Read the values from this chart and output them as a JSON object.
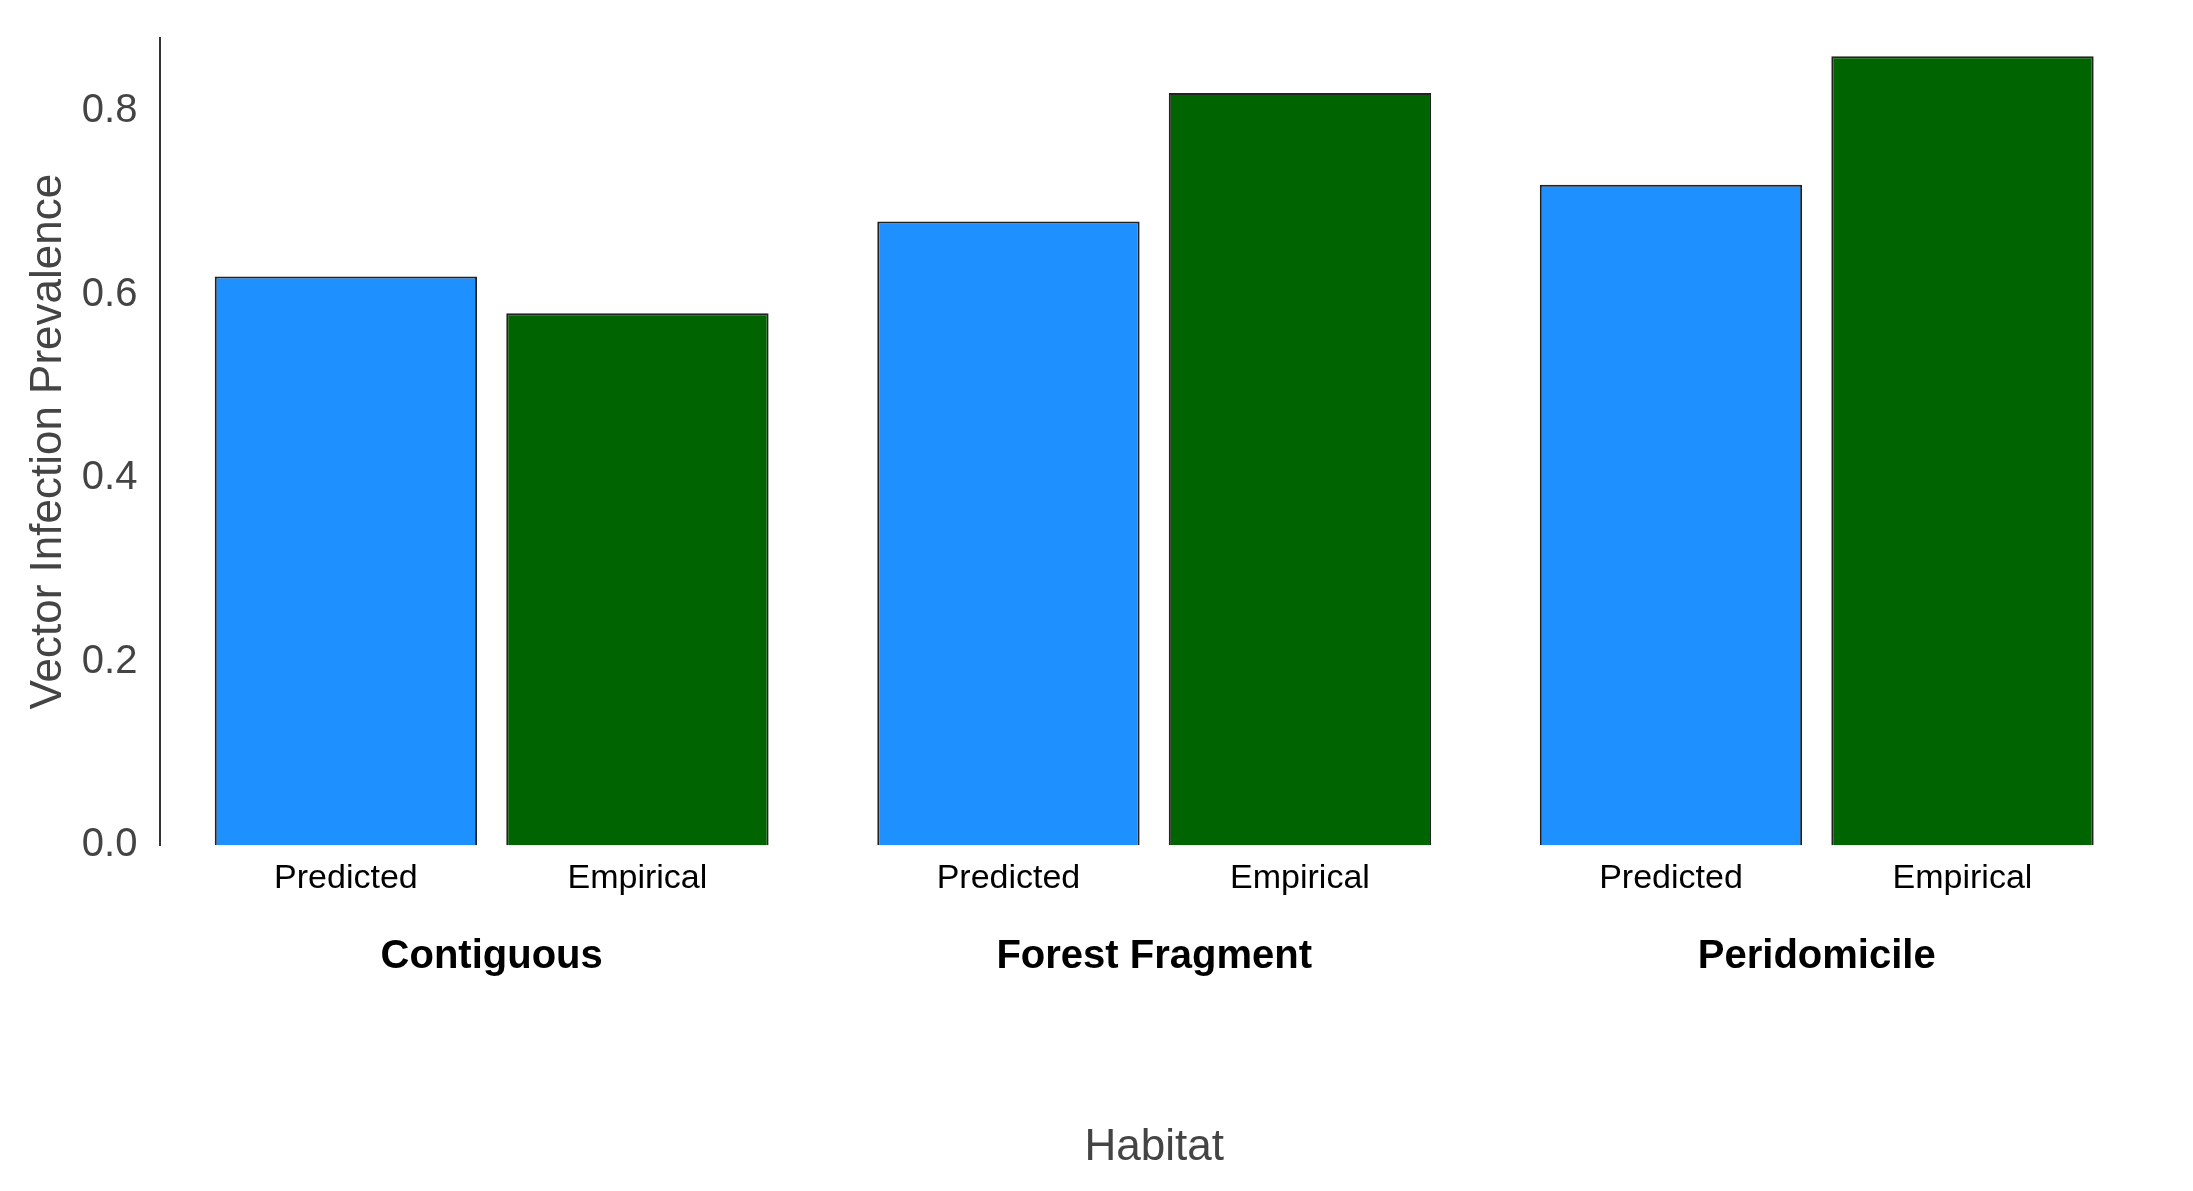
{
  "chart_data": {
    "type": "bar",
    "xlabel": "Habitat",
    "ylabel": "Vector Infection Prevalence",
    "categories": [
      "Contiguous",
      "Forest Fragment",
      "Peridomicile"
    ],
    "series": [
      {
        "name": "Predicted",
        "color": "#1e90ff",
        "values": [
          0.62,
          0.68,
          0.72
        ]
      },
      {
        "name": "Empirical",
        "color": "#006400",
        "values": [
          0.58,
          0.82,
          0.86
        ]
      }
    ],
    "ylim": [
      0,
      0.88
    ],
    "yticks": [
      {
        "value": 0,
        "label": "0.0"
      },
      0.2,
      0.4,
      0.6,
      0.8
    ],
    "grid": false,
    "legend": false
  }
}
